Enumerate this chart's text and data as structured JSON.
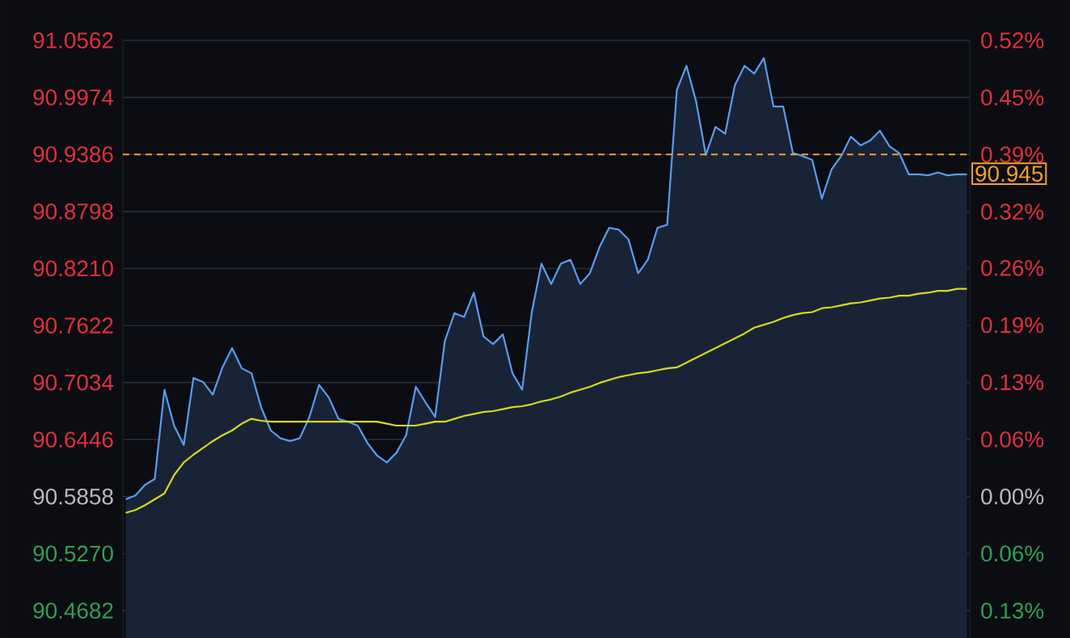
{
  "chart_data": {
    "type": "line",
    "categories": [
      null,
      null,
      null,
      null,
      null,
      null,
      null,
      null,
      null,
      null,
      null,
      null,
      null,
      null,
      null,
      null,
      null,
      null,
      null,
      null,
      null,
      null,
      null,
      null,
      null,
      null,
      null,
      null,
      null,
      null,
      null,
      null,
      null,
      null,
      null,
      null,
      null,
      null,
      null,
      null,
      null,
      null,
      null,
      null,
      null,
      null,
      null,
      null,
      null,
      null,
      null,
      null,
      null,
      null,
      null,
      null,
      null,
      null,
      null,
      null,
      null,
      null,
      null,
      null,
      null,
      null,
      null,
      null,
      null,
      null,
      null,
      null,
      null,
      null,
      null,
      null,
      null,
      null,
      null,
      null,
      null,
      null,
      null,
      null,
      null,
      null,
      null,
      null
    ],
    "series": [
      {
        "type": "area",
        "color": "#5a9cf0",
        "values": [
          90.583,
          90.587,
          90.598,
          90.604,
          90.696,
          90.659,
          90.639,
          90.708,
          90.704,
          90.691,
          90.719,
          90.739,
          90.718,
          90.713,
          90.678,
          90.654,
          90.646,
          90.643,
          90.646,
          90.668,
          90.701,
          90.688,
          90.666,
          90.663,
          90.659,
          90.641,
          90.628,
          90.621,
          90.631,
          90.649,
          90.699,
          90.683,
          90.668,
          90.746,
          90.775,
          90.771,
          90.796,
          90.751,
          90.743,
          90.753,
          90.713,
          90.696,
          90.776,
          90.826,
          90.805,
          90.826,
          90.83,
          90.805,
          90.816,
          90.843,
          90.863,
          90.861,
          90.851,
          90.816,
          90.83,
          90.863,
          90.866,
          91.005,
          91.03,
          90.993,
          90.938,
          90.967,
          90.96,
          91.01,
          91.03,
          91.022,
          91.038,
          90.988,
          90.988,
          90.94,
          90.937,
          90.933,
          90.893,
          90.923,
          90.937,
          90.957,
          90.948,
          90.953,
          90.963,
          90.947,
          90.94,
          90.918,
          90.918,
          90.917,
          90.92,
          90.917,
          90.918,
          90.918
        ]
      },
      {
        "color": "#d8d820",
        "values": [
          90.569,
          90.572,
          90.577,
          90.583,
          90.589,
          90.608,
          90.621,
          90.629,
          90.636,
          90.643,
          90.649,
          90.654,
          90.661,
          90.666,
          90.664,
          90.663,
          90.663,
          90.663,
          90.663,
          90.663,
          90.663,
          90.663,
          90.663,
          90.663,
          90.663,
          90.663,
          90.663,
          90.661,
          90.659,
          90.659,
          90.659,
          90.661,
          90.663,
          90.663,
          90.666,
          90.669,
          90.671,
          90.673,
          90.674,
          90.676,
          90.678,
          90.679,
          90.681,
          90.684,
          90.686,
          90.689,
          90.693,
          90.696,
          90.699,
          90.703,
          90.706,
          90.709,
          90.711,
          90.713,
          90.714,
          90.716,
          90.718,
          90.719,
          90.724,
          90.729,
          90.734,
          90.739,
          90.744,
          90.749,
          90.754,
          90.76,
          90.763,
          90.766,
          90.77,
          90.773,
          90.775,
          90.776,
          90.78,
          90.781,
          90.783,
          90.785,
          90.786,
          90.788,
          90.79,
          90.791,
          90.793,
          90.793,
          90.795,
          90.796,
          90.798,
          90.798,
          90.8,
          90.8
        ]
      }
    ],
    "ylim": [
      90.44,
      91.0562
    ],
    "yticks": [
      91.0562,
      90.9974,
      90.9386,
      90.8798,
      {
        "value": 90.821,
        "label": "90.8210"
      },
      90.7622,
      90.7034,
      90.6446,
      90.5858,
      {
        "value": 90.527,
        "label": "90.5270"
      },
      90.4682
    ],
    "y2lim": [
      -0.161,
      0.519
    ],
    "y2ticks": [
      {
        "value": 0.519,
        "label": "0.52%"
      },
      {
        "value": 0.454,
        "label": "0.45%"
      },
      {
        "value": 0.389,
        "label": "0.39%"
      },
      {
        "value": 0.324,
        "label": "0.32%"
      },
      {
        "value": 0.26,
        "label": "0.26%"
      },
      {
        "value": 0.195,
        "label": "0.19%"
      },
      {
        "value": 0.13,
        "label": "0.13%"
      },
      {
        "value": 0.065,
        "label": "0.06%"
      },
      {
        "value": 0,
        "label": "0.00%"
      },
      {
        "value": -0.065,
        "label": "0.06%"
      },
      {
        "value": -0.13,
        "label": "0.13%"
      }
    ],
    "ref_lines": [
      {
        "axis": "y",
        "value": 90.9386,
        "color": "#f0a030",
        "line_style": "dashed"
      }
    ],
    "annotations": [
      "90.945"
    ],
    "grid": true,
    "marker": "none"
  }
}
